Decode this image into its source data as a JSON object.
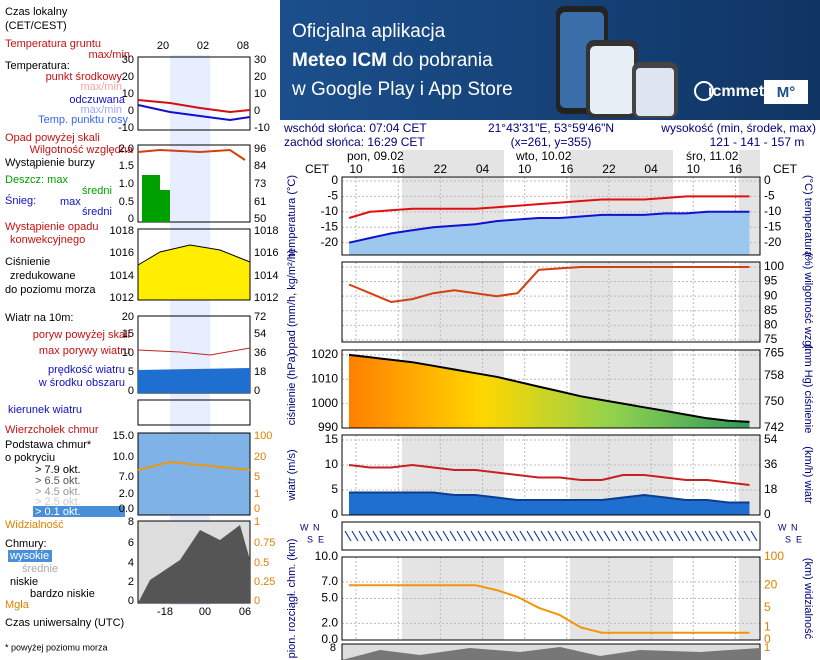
{
  "banner": {
    "line1": "Oficjalna aplikacja",
    "line2_bold": "Meteo ICM",
    "line2_rest": " do pobrania",
    "line3": "w Google Play i App Store",
    "logo": "icmmeteo",
    "badge": "M°"
  },
  "info": {
    "sunrise": "wschód słońca: 07:04 CET",
    "sunset": "zachód słońca: 16:29 CET",
    "coords": "21°43'31\"E, 53°59'46\"N",
    "grid": "(x=261, y=355)",
    "height_label": "wysokość (min, środek, max)",
    "height": "121 - 141 - 157 m"
  },
  "header": {
    "dates": [
      "pon, 09.02",
      "wto, 10.02",
      "śro, 11.02"
    ],
    "tz": "CET"
  },
  "compass": [
    "W",
    "S",
    "N",
    "E"
  ],
  "bottom_panel": {
    "left": "8",
    "right": "1"
  },
  "legend": {
    "items": [
      "Czas lokalny",
      "(CET/CEST)",
      "Temperatura gruntu",
      "max/min",
      "Temperatura:",
      "max/min",
      "max/min",
      "Temp. punktu rosy",
      "Opad powyżej skali",
      "Wystąpienie burzy",
      "Deszcz: max",
      "średni",
      "Śnieg:",
      "max",
      "średni",
      "Wystąpienie opadu",
      "konwekcyjnego",
      "zredukowane",
      "do poziomu morza",
      "Wiatr na 10m:",
      "poryw powyżej skali",
      "w środku obszaru",
      "kierunek wiatru",
      "Wierzchołek chmur",
      "Podstawa chmur*",
      "o pokryciu",
      "> 7.9 okt.",
      "> 6.5 okt.",
      "> 4.5 okt.",
      "> 2.5 okt.",
      "> 0.1 okt.",
      "Chmury:",
      "wysokie",
      "średnie",
      "niskie",
      "bardzo niskie",
      "Mgła",
      "Czas uniwersalny (UTC)",
      "* powyżej poziomu morza"
    ],
    "top_hours": [
      "20",
      "02",
      "08"
    ],
    "bottom_hours": [
      "-18",
      "00",
      "06"
    ],
    "plots": [
      {
        "left": [
          "30",
          "20",
          "10",
          "0",
          "-10"
        ],
        "right": [
          "30",
          "20",
          "10",
          "0",
          "-10"
        ]
      },
      {
        "left": [
          "2.0",
          "1.5",
          "1.0",
          "0.5",
          "0"
        ],
        "right": [
          "96",
          "84",
          "73",
          "61",
          "50"
        ]
      },
      {
        "left": [
          "1018",
          "1016",
          "1014",
          "1012"
        ],
        "right": [
          "1018",
          "1016",
          "1014",
          "1012"
        ]
      },
      {
        "left": [
          "20",
          "15",
          "10",
          "5",
          "0"
        ],
        "right": [
          "72",
          "54",
          "36",
          "18",
          "0"
        ]
      },
      {
        "left": [
          "15.0",
          "10.0",
          "7.0",
          "2.0",
          "0.0"
        ],
        "right": [
          "100",
          "20",
          "5",
          "1",
          "0"
        ]
      },
      {
        "left": [
          "8",
          "6",
          "4",
          "2",
          "0"
        ],
        "right": [
          "1",
          "0.75",
          "0.5",
          "0.25",
          "0"
        ]
      }
    ]
  },
  "chart_data": [
    {
      "type": "line",
      "ylabel": "temperatura (°C)",
      "y2label": "(°C) temperatura",
      "x": [
        9,
        12,
        15,
        18,
        21,
        24,
        27,
        30,
        33,
        36,
        39,
        42,
        45,
        48,
        51,
        54,
        57,
        60,
        63,
        66
      ],
      "xlim": [
        8,
        67.5
      ],
      "xticks": [
        10,
        16,
        22,
        {
          "value": 28,
          "label": "04"
        },
        {
          "value": 34,
          "label": "10"
        },
        {
          "value": 40,
          "label": "16"
        },
        {
          "value": 46,
          "label": "22"
        },
        {
          "value": 52,
          "label": "04"
        },
        {
          "value": 58,
          "label": "10"
        },
        {
          "value": 64,
          "label": "16"
        }
      ],
      "ylim": [
        -24,
        1.3
      ],
      "yticks": [
        0,
        -5,
        -10,
        -15,
        -20
      ],
      "mirror_yticks": true,
      "grid": true,
      "series": [
        {
          "name": "punkt środkowy",
          "color": "#e01010",
          "values": [
            -12,
            -10,
            -9.5,
            -9,
            -9,
            -9,
            -9,
            -8.5,
            -8,
            -7.5,
            -7,
            -6.5,
            -6,
            -6,
            -6,
            -5.5,
            -5,
            -5,
            -5,
            -5
          ]
        },
        {
          "name": "odczuwana",
          "color": "#1010d0",
          "area_color": "#9cc8f0",
          "values": [
            -20,
            -18.5,
            -17,
            -16,
            -15,
            -14.5,
            -14,
            -13,
            -12.5,
            -12,
            -12,
            -11.5,
            -11,
            -11,
            -11,
            -10.5,
            -10.5,
            -10,
            -10,
            -10
          ]
        }
      ]
    },
    {
      "type": "line",
      "ylabel": "opad (mm/h, kg/m²/h)",
      "y2label": "(%) wilgotność wzgl.",
      "x": [
        9,
        12,
        15,
        18,
        21,
        24,
        27,
        30,
        33,
        36,
        39,
        42,
        45,
        48,
        51,
        54,
        57,
        60,
        63,
        66
      ],
      "xlim": [
        8,
        67.5
      ],
      "y2lim": [
        74.3,
        101.7
      ],
      "y2ticks": [
        100,
        95,
        90,
        85,
        80,
        75
      ],
      "grid": true,
      "series": [
        {
          "name": "Wilgotność względna",
          "color": "#d04010",
          "axis": "y2",
          "values": [
            94,
            91,
            88,
            89,
            91,
            92,
            91,
            90,
            91,
            99,
            99.5,
            100,
            100,
            100,
            100,
            100,
            100,
            100,
            100,
            100
          ]
        }
      ]
    },
    {
      "type": "line",
      "ylabel": "ciśnienie (hPa)",
      "y2label": "(mm Hg) ciśnienie",
      "x": [
        9,
        12,
        15,
        18,
        21,
        24,
        27,
        30,
        33,
        36,
        39,
        42,
        45,
        48,
        51,
        54,
        57,
        60,
        63,
        66
      ],
      "xlim": [
        8,
        67.5
      ],
      "ylim": [
        990,
        1022
      ],
      "yticks": [
        1020,
        1010,
        1000,
        990
      ],
      "y2lim": [
        742,
        766
      ],
      "y2ticks": [
        765,
        758,
        750,
        742
      ],
      "grid": true,
      "series": [
        {
          "name": "Ciśnienie",
          "color": "#000000",
          "area_gradient": [
            "#ff7f00",
            "#ffd700",
            "#8fd14f",
            "#2e9a5a"
          ],
          "values": [
            1020,
            1019,
            1018,
            1017,
            1015.5,
            1014,
            1012.5,
            1011,
            1009,
            1007,
            1005,
            1003,
            1001.5,
            1000,
            998.5,
            997,
            995.5,
            994,
            993,
            992.5
          ]
        }
      ]
    },
    {
      "type": "line",
      "ylabel": "wiatr (m/s)",
      "y2label": "(km/h) wiatr",
      "x": [
        9,
        12,
        15,
        18,
        21,
        24,
        27,
        30,
        33,
        36,
        39,
        42,
        45,
        48,
        51,
        54,
        57,
        60,
        63,
        66
      ],
      "xlim": [
        8,
        67.5
      ],
      "ylim": [
        0,
        16
      ],
      "yticks": [
        15,
        10,
        5,
        0
      ],
      "y2lim": [
        0,
        57.6
      ],
      "y2ticks": [
        54,
        36,
        18,
        0
      ],
      "grid": true,
      "series": [
        {
          "name": "prędkość wiatru",
          "color": "#0d3d8c",
          "area_color": "#1e6fd0",
          "values": [
            4.5,
            4.5,
            4.5,
            4.5,
            4.5,
            4,
            4,
            3.5,
            3,
            3,
            3,
            3,
            3,
            3.5,
            4,
            3.5,
            3,
            3,
            2.5,
            2.5
          ]
        },
        {
          "name": "max porywy wiatru",
          "color": "#c82020",
          "values": [
            10,
            9.5,
            9.5,
            10,
            9.5,
            9,
            9,
            8.5,
            8,
            7.5,
            7.5,
            7,
            7,
            8,
            8,
            7.5,
            7,
            7,
            6.5,
            6
          ]
        }
      ]
    },
    {
      "type": "line",
      "ylabel": "pion. rozciągł. chm. (km)",
      "y2label": "(km) widzialność",
      "x": [
        9,
        12,
        15,
        18,
        21,
        24,
        27,
        30,
        33,
        36,
        39,
        42,
        45,
        48,
        51,
        54,
        57,
        60,
        63,
        66
      ],
      "xlim": [
        8,
        67.5
      ],
      "ylim": [
        0,
        10
      ],
      "yticks": [
        {
          "value": 10,
          "label": "10.0"
        },
        {
          "value": 7,
          "label": "7.0"
        },
        {
          "value": 5,
          "label": "5.0"
        },
        {
          "value": 2,
          "label": "2.0"
        },
        {
          "value": 0,
          "label": "0.0"
        }
      ],
      "y2lim": [
        0,
        100
      ],
      "y2ticks": [
        100,
        20,
        5,
        1,
        0
      ],
      "y2log": true,
      "grid": true,
      "series": [
        {
          "name": "Widzialność",
          "color": "#f0960a",
          "axis": "y2",
          "values": [
            20,
            20,
            20,
            20,
            20,
            20,
            20,
            15,
            10,
            5,
            3,
            1,
            0.5,
            0.5,
            0.5,
            0.5,
            0.5,
            0.5,
            0.5,
            0.5
          ]
        }
      ]
    }
  ]
}
